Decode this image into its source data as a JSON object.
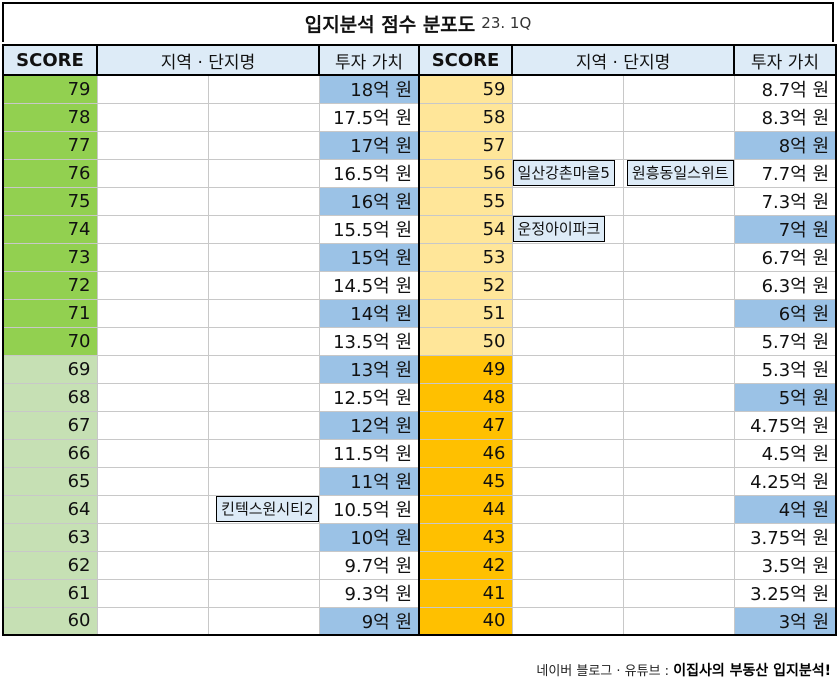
{
  "title": {
    "main": "입지분석 점수 분포도",
    "sub": "23. 1Q"
  },
  "headers": {
    "score": "SCORE",
    "region": "지역 · 단지명",
    "value": "투자 가치"
  },
  "left_rows": [
    {
      "score": "79",
      "value": "18억 원",
      "blue": true,
      "band": "green"
    },
    {
      "score": "78",
      "value": "17.5억 원",
      "blue": false,
      "band": "green"
    },
    {
      "score": "77",
      "value": "17억 원",
      "blue": true,
      "band": "green"
    },
    {
      "score": "76",
      "value": "16.5억 원",
      "blue": false,
      "band": "green"
    },
    {
      "score": "75",
      "value": "16억 원",
      "blue": true,
      "band": "green"
    },
    {
      "score": "74",
      "value": "15.5억 원",
      "blue": false,
      "band": "green"
    },
    {
      "score": "73",
      "value": "15억 원",
      "blue": true,
      "band": "green"
    },
    {
      "score": "72",
      "value": "14.5억 원",
      "blue": false,
      "band": "green"
    },
    {
      "score": "71",
      "value": "14억 원",
      "blue": true,
      "band": "green"
    },
    {
      "score": "70",
      "value": "13.5억 원",
      "blue": false,
      "band": "green"
    },
    {
      "score": "69",
      "value": "13억 원",
      "blue": true,
      "band": "lightgreen"
    },
    {
      "score": "68",
      "value": "12.5억 원",
      "blue": false,
      "band": "lightgreen"
    },
    {
      "score": "67",
      "value": "12억 원",
      "blue": true,
      "band": "lightgreen"
    },
    {
      "score": "66",
      "value": "11.5억 원",
      "blue": false,
      "band": "lightgreen"
    },
    {
      "score": "65",
      "value": "11억 원",
      "blue": true,
      "band": "lightgreen"
    },
    {
      "score": "64",
      "value": "10.5억 원",
      "blue": false,
      "band": "lightgreen",
      "tag2": "킨텍스원시티2"
    },
    {
      "score": "63",
      "value": "10억 원",
      "blue": true,
      "band": "lightgreen"
    },
    {
      "score": "62",
      "value": "9.7억 원",
      "blue": false,
      "band": "lightgreen"
    },
    {
      "score": "61",
      "value": "9.3억 원",
      "blue": false,
      "band": "lightgreen"
    },
    {
      "score": "60",
      "value": "9억 원",
      "blue": true,
      "band": "lightgreen"
    }
  ],
  "right_rows": [
    {
      "score": "59",
      "value": "8.7억 원",
      "blue": false,
      "band": "lightyellow"
    },
    {
      "score": "58",
      "value": "8.3억 원",
      "blue": false,
      "band": "lightyellow"
    },
    {
      "score": "57",
      "value": "8억 원",
      "blue": true,
      "band": "lightyellow"
    },
    {
      "score": "56",
      "value": "7.7억 원",
      "blue": false,
      "band": "lightyellow",
      "tag1": "일산강촌마을5",
      "tag2": "원흥동일스위트"
    },
    {
      "score": "55",
      "value": "7.3억 원",
      "blue": false,
      "band": "lightyellow"
    },
    {
      "score": "54",
      "value": "7억 원",
      "blue": true,
      "band": "lightyellow",
      "tag1": "운정아이파크"
    },
    {
      "score": "53",
      "value": "6.7억 원",
      "blue": false,
      "band": "lightyellow"
    },
    {
      "score": "52",
      "value": "6.3억 원",
      "blue": false,
      "band": "lightyellow"
    },
    {
      "score": "51",
      "value": "6억 원",
      "blue": true,
      "band": "lightyellow"
    },
    {
      "score": "50",
      "value": "5.7억 원",
      "blue": false,
      "band": "lightyellow"
    },
    {
      "score": "49",
      "value": "5.3억 원",
      "blue": false,
      "band": "orange"
    },
    {
      "score": "48",
      "value": "5억 원",
      "blue": true,
      "band": "orange"
    },
    {
      "score": "47",
      "value": "4.75억 원",
      "blue": false,
      "band": "orange"
    },
    {
      "score": "46",
      "value": "4.5억 원",
      "blue": false,
      "band": "orange"
    },
    {
      "score": "45",
      "value": "4.25억 원",
      "blue": false,
      "band": "orange"
    },
    {
      "score": "44",
      "value": "4억 원",
      "blue": true,
      "band": "orange"
    },
    {
      "score": "43",
      "value": "3.75억 원",
      "blue": false,
      "band": "orange"
    },
    {
      "score": "42",
      "value": "3.5억 원",
      "blue": false,
      "band": "orange"
    },
    {
      "score": "41",
      "value": "3.25억 원",
      "blue": false,
      "band": "orange"
    },
    {
      "score": "40",
      "value": "3억 원",
      "blue": true,
      "band": "orange"
    }
  ],
  "footer": {
    "prefix": "네이버 블로그 · 유튜브 : ",
    "brand": "이집사의 부동산 입지분석!"
  },
  "colors": {
    "green": "#92d050",
    "lightgreen": "#c6e0b4",
    "lightyellow": "#ffe699",
    "orange": "#ffc000",
    "value_blue": "#9bc2e6",
    "header": "#ddebf7"
  }
}
